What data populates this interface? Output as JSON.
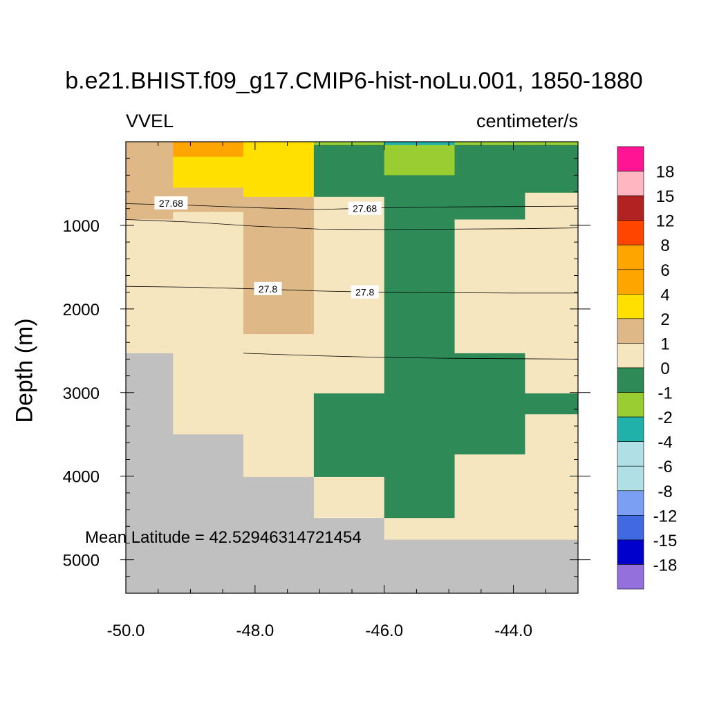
{
  "chart_data": {
    "type": "heatmap",
    "title": "b.e21.BHIST.f09_g17.CMIP6-hist-noLu.001, 1850-1880",
    "variable_label": "VVEL",
    "units_label": "centimeter/s",
    "ylabel": "Depth (m)",
    "xlabel": "",
    "annotation": "Mean Latitude = 42.52946314721454",
    "x_range": [
      -50.0,
      -43.0
    ],
    "y_range": [
      0,
      5400
    ],
    "y_reversed": true,
    "x_ticks": [
      {
        "value": -50.0,
        "label": "-50.0"
      },
      {
        "value": -48.0,
        "label": "-48.0"
      },
      {
        "value": -46.0,
        "label": "-46.0"
      },
      {
        "value": -44.0,
        "label": "-44.0"
      }
    ],
    "y_ticks": [
      {
        "value": 1000,
        "label": "1000"
      },
      {
        "value": 2000,
        "label": "2000"
      },
      {
        "value": 3000,
        "label": "3000"
      },
      {
        "value": 4000,
        "label": "4000"
      },
      {
        "value": 5000,
        "label": "5000"
      }
    ],
    "missing_color": "#c0c0c0",
    "cells": [
      {
        "x": [
          -50.0,
          -49.27
        ],
        "y": [
          0,
          930
        ],
        "color": "#deb887"
      },
      {
        "x": [
          -50.0,
          -49.27
        ],
        "y": [
          930,
          2530
        ],
        "color": "#f5e6c0"
      },
      {
        "x": [
          -50.0,
          -49.27
        ],
        "y": [
          2530,
          5400
        ],
        "color": "#c0c0c0"
      },
      {
        "x": [
          -49.27,
          -48.18
        ],
        "y": [
          0,
          180
        ],
        "color": "#ffa500"
      },
      {
        "x": [
          -49.27,
          -48.18
        ],
        "y": [
          180,
          550
        ],
        "color": "#ffe000"
      },
      {
        "x": [
          -49.27,
          -48.18
        ],
        "y": [
          550,
          840
        ],
        "color": "#deb887"
      },
      {
        "x": [
          -49.27,
          -48.18
        ],
        "y": [
          840,
          3500
        ],
        "color": "#f5e6c0"
      },
      {
        "x": [
          -49.27,
          -48.18
        ],
        "y": [
          3500,
          5400
        ],
        "color": "#c0c0c0"
      },
      {
        "x": [
          -48.18,
          -47.09
        ],
        "y": [
          0,
          660
        ],
        "color": "#ffe000"
      },
      {
        "x": [
          -48.18,
          -47.09
        ],
        "y": [
          660,
          2300
        ],
        "color": "#deb887"
      },
      {
        "x": [
          -48.18,
          -47.09
        ],
        "y": [
          2300,
          4010
        ],
        "color": "#f5e6c0"
      },
      {
        "x": [
          -48.18,
          -47.09
        ],
        "y": [
          4010,
          5400
        ],
        "color": "#c0c0c0"
      },
      {
        "x": [
          -47.09,
          -46.0
        ],
        "y": [
          0,
          40
        ],
        "color": "#9acd32"
      },
      {
        "x": [
          -47.09,
          -46.0
        ],
        "y": [
          40,
          660
        ],
        "color": "#2e8b57"
      },
      {
        "x": [
          -47.09,
          -46.0
        ],
        "y": [
          660,
          3010
        ],
        "color": "#f5e6c0"
      },
      {
        "x": [
          -47.09,
          -46.0
        ],
        "y": [
          3010,
          4010
        ],
        "color": "#2e8b57"
      },
      {
        "x": [
          -47.09,
          -46.0
        ],
        "y": [
          4010,
          4500
        ],
        "color": "#f5e6c0"
      },
      {
        "x": [
          -47.09,
          -46.0
        ],
        "y": [
          4500,
          5400
        ],
        "color": "#c0c0c0"
      },
      {
        "x": [
          -46.0,
          -44.91
        ],
        "y": [
          0,
          40
        ],
        "color": "#20b2aa"
      },
      {
        "x": [
          -46.0,
          -44.91
        ],
        "y": [
          40,
          400
        ],
        "color": "#9acd32"
      },
      {
        "x": [
          -46.0,
          -44.91
        ],
        "y": [
          400,
          4500
        ],
        "color": "#2e8b57"
      },
      {
        "x": [
          -46.0,
          -44.91
        ],
        "y": [
          4500,
          4760
        ],
        "color": "#f5e6c0"
      },
      {
        "x": [
          -46.0,
          -44.91
        ],
        "y": [
          4760,
          5400
        ],
        "color": "#c0c0c0"
      },
      {
        "x": [
          -44.91,
          -43.82
        ],
        "y": [
          0,
          40
        ],
        "color": "#9acd32"
      },
      {
        "x": [
          -44.91,
          -43.82
        ],
        "y": [
          40,
          930
        ],
        "color": "#2e8b57"
      },
      {
        "x": [
          -44.91,
          -43.82
        ],
        "y": [
          930,
          2530
        ],
        "color": "#f5e6c0"
      },
      {
        "x": [
          -44.91,
          -43.82
        ],
        "y": [
          2530,
          3740
        ],
        "color": "#2e8b57"
      },
      {
        "x": [
          -44.91,
          -43.82
        ],
        "y": [
          3740,
          4760
        ],
        "color": "#f5e6c0"
      },
      {
        "x": [
          -44.91,
          -43.82
        ],
        "y": [
          4760,
          5400
        ],
        "color": "#c0c0c0"
      },
      {
        "x": [
          -43.82,
          -43.0
        ],
        "y": [
          0,
          40
        ],
        "color": "#9acd32"
      },
      {
        "x": [
          -43.82,
          -43.0
        ],
        "y": [
          40,
          610
        ],
        "color": "#2e8b57"
      },
      {
        "x": [
          -43.82,
          -43.0
        ],
        "y": [
          610,
          3010
        ],
        "color": "#f5e6c0"
      },
      {
        "x": [
          -43.82,
          -43.0
        ],
        "y": [
          3010,
          3260
        ],
        "color": "#2e8b57"
      },
      {
        "x": [
          -43.82,
          -43.0
        ],
        "y": [
          3260,
          4760
        ],
        "color": "#f5e6c0"
      },
      {
        "x": [
          -43.82,
          -43.0
        ],
        "y": [
          4760,
          5400
        ],
        "color": "#c0c0c0"
      }
    ],
    "contours": [
      {
        "label": "27.68",
        "points": [
          [
            -50.0,
            740
          ],
          [
            -49.0,
            760
          ],
          [
            -48.0,
            790
          ],
          [
            -47.0,
            810
          ],
          [
            -46.0,
            790
          ],
          [
            -45.0,
            780
          ],
          [
            -44.0,
            775
          ],
          [
            -43.0,
            770
          ]
        ],
        "labels_at": [
          [
            -49.3,
            735
          ],
          [
            -46.3,
            800
          ]
        ]
      },
      {
        "label": "",
        "points": [
          [
            -50.0,
            930
          ],
          [
            -49.0,
            960
          ],
          [
            -48.0,
            1010
          ],
          [
            -47.0,
            1045
          ],
          [
            -46.0,
            1050
          ],
          [
            -45.0,
            1045
          ],
          [
            -44.0,
            1040
          ],
          [
            -43.0,
            1030
          ]
        ],
        "labels_at": []
      },
      {
        "label": "27.8",
        "points": [
          [
            -50.0,
            1730
          ],
          [
            -49.0,
            1740
          ],
          [
            -48.0,
            1760
          ],
          [
            -47.0,
            1785
          ],
          [
            -46.0,
            1800
          ],
          [
            -45.0,
            1805
          ],
          [
            -44.0,
            1810
          ],
          [
            -43.0,
            1810
          ]
        ],
        "labels_at": [
          [
            -47.8,
            1760
          ],
          [
            -46.3,
            1800
          ]
        ]
      },
      {
        "label": "",
        "points": [
          [
            -48.18,
            2530
          ],
          [
            -47.0,
            2560
          ],
          [
            -46.0,
            2580
          ],
          [
            -45.0,
            2590
          ],
          [
            -44.0,
            2595
          ],
          [
            -43.0,
            2600
          ]
        ],
        "labels_at": []
      }
    ],
    "colorbar": {
      "labels": [
        "18",
        "15",
        "12",
        "8",
        "6",
        "4",
        "2",
        "1",
        "0",
        "-1",
        "-2",
        "-4",
        "-6",
        "-8",
        "-12",
        "-15",
        "-18"
      ],
      "colors": [
        "#ff1493",
        "#ffb6c1",
        "#b22222",
        "#ff4500",
        "#ffa500",
        "#ffa500",
        "#ffe000",
        "#deb887",
        "#f5e6c0",
        "#2e8b57",
        "#9acd32",
        "#20b2aa",
        "#b0e0e6",
        "#b0e0e6",
        "#7b9ff2",
        "#4169e1",
        "#0000cd",
        "#9370db"
      ]
    }
  }
}
